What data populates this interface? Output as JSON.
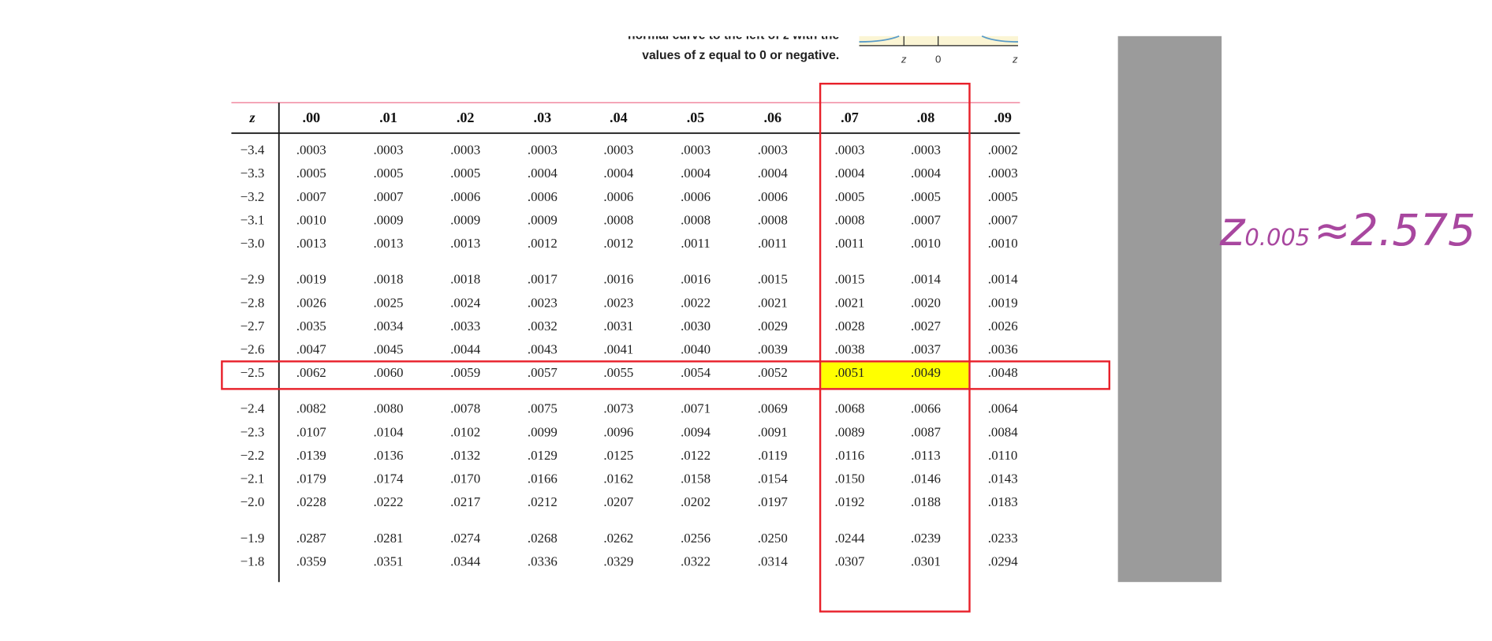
{
  "header": {
    "caption": [
      "normal curve to the left of z with the",
      "values of z equal to 0 or negative."
    ],
    "graph_labels": [
      "z",
      "0",
      "z"
    ]
  },
  "table": {
    "columns": [
      "z",
      ".00",
      ".01",
      ".02",
      ".03",
      ".04",
      ".05",
      ".06",
      ".07",
      ".08",
      ".09"
    ],
    "rows": [
      [
        "−3.4",
        ".0003",
        ".0003",
        ".0003",
        ".0003",
        ".0003",
        ".0003",
        ".0003",
        ".0003",
        ".0003",
        ".0002"
      ],
      [
        "−3.3",
        ".0005",
        ".0005",
        ".0005",
        ".0004",
        ".0004",
        ".0004",
        ".0004",
        ".0004",
        ".0004",
        ".0003"
      ],
      [
        "−3.2",
        ".0007",
        ".0007",
        ".0006",
        ".0006",
        ".0006",
        ".0006",
        ".0006",
        ".0005",
        ".0005",
        ".0005"
      ],
      [
        "−3.1",
        ".0010",
        ".0009",
        ".0009",
        ".0009",
        ".0008",
        ".0008",
        ".0008",
        ".0008",
        ".0007",
        ".0007"
      ],
      [
        "−3.0",
        ".0013",
        ".0013",
        ".0013",
        ".0012",
        ".0012",
        ".0011",
        ".0011",
        ".0011",
        ".0010",
        ".0010"
      ],
      [
        "−2.9",
        ".0019",
        ".0018",
        ".0018",
        ".0017",
        ".0016",
        ".0016",
        ".0015",
        ".0015",
        ".0014",
        ".0014"
      ],
      [
        "−2.8",
        ".0026",
        ".0025",
        ".0024",
        ".0023",
        ".0023",
        ".0022",
        ".0021",
        ".0021",
        ".0020",
        ".0019"
      ],
      [
        "−2.7",
        ".0035",
        ".0034",
        ".0033",
        ".0032",
        ".0031",
        ".0030",
        ".0029",
        ".0028",
        ".0027",
        ".0026"
      ],
      [
        "−2.6",
        ".0047",
        ".0045",
        ".0044",
        ".0043",
        ".0041",
        ".0040",
        ".0039",
        ".0038",
        ".0037",
        ".0036"
      ],
      [
        "−2.5",
        ".0062",
        ".0060",
        ".0059",
        ".0057",
        ".0055",
        ".0054",
        ".0052",
        ".0051",
        ".0049",
        ".0048"
      ],
      [
        "−2.4",
        ".0082",
        ".0080",
        ".0078",
        ".0075",
        ".0073",
        ".0071",
        ".0069",
        ".0068",
        ".0066",
        ".0064"
      ],
      [
        "−2.3",
        ".0107",
        ".0104",
        ".0102",
        ".0099",
        ".0096",
        ".0094",
        ".0091",
        ".0089",
        ".0087",
        ".0084"
      ],
      [
        "−2.2",
        ".0139",
        ".0136",
        ".0132",
        ".0129",
        ".0125",
        ".0122",
        ".0119",
        ".0116",
        ".0113",
        ".0110"
      ],
      [
        "−2.1",
        ".0179",
        ".0174",
        ".0170",
        ".0166",
        ".0162",
        ".0158",
        ".0154",
        ".0150",
        ".0146",
        ".0143"
      ],
      [
        "−2.0",
        ".0228",
        ".0222",
        ".0217",
        ".0212",
        ".0207",
        ".0202",
        ".0197",
        ".0192",
        ".0188",
        ".0183"
      ],
      [
        "−1.9",
        ".0287",
        ".0281",
        ".0274",
        ".0268",
        ".0262",
        ".0256",
        ".0250",
        ".0244",
        ".0239",
        ".0233"
      ],
      [
        "−1.8",
        ".0359",
        ".0351",
        ".0344",
        ".0336",
        ".0329",
        ".0322",
        ".0314",
        ".0307",
        ".0301",
        ".0294"
      ]
    ]
  },
  "annotation": {
    "symbol": "z",
    "subscript": "0.005",
    "result": "≈2.575"
  }
}
